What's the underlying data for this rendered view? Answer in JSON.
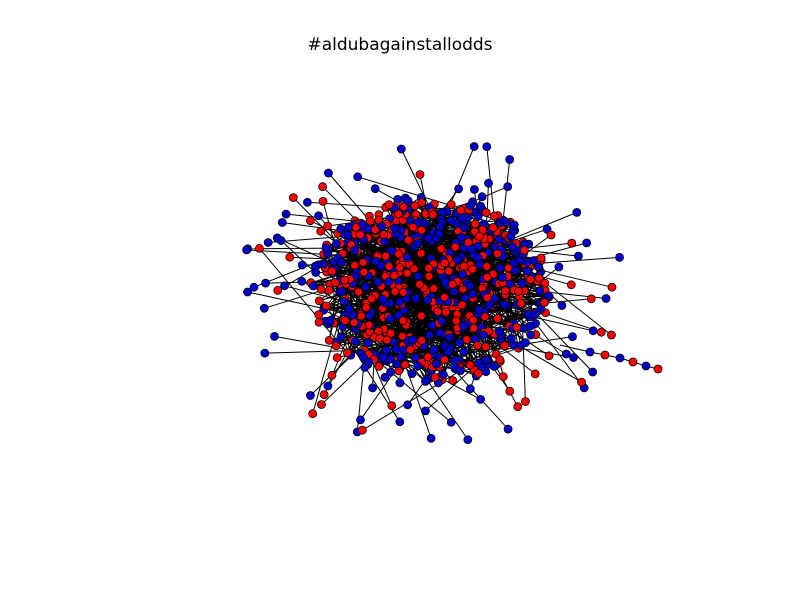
{
  "figure": {
    "title": "#aldubagainstallodds"
  },
  "graph": {
    "type": "network",
    "node_colors": [
      "#ff0000",
      "#0000cc"
    ],
    "edge_color": "#000000",
    "node_outline": "#000000"
  }
}
